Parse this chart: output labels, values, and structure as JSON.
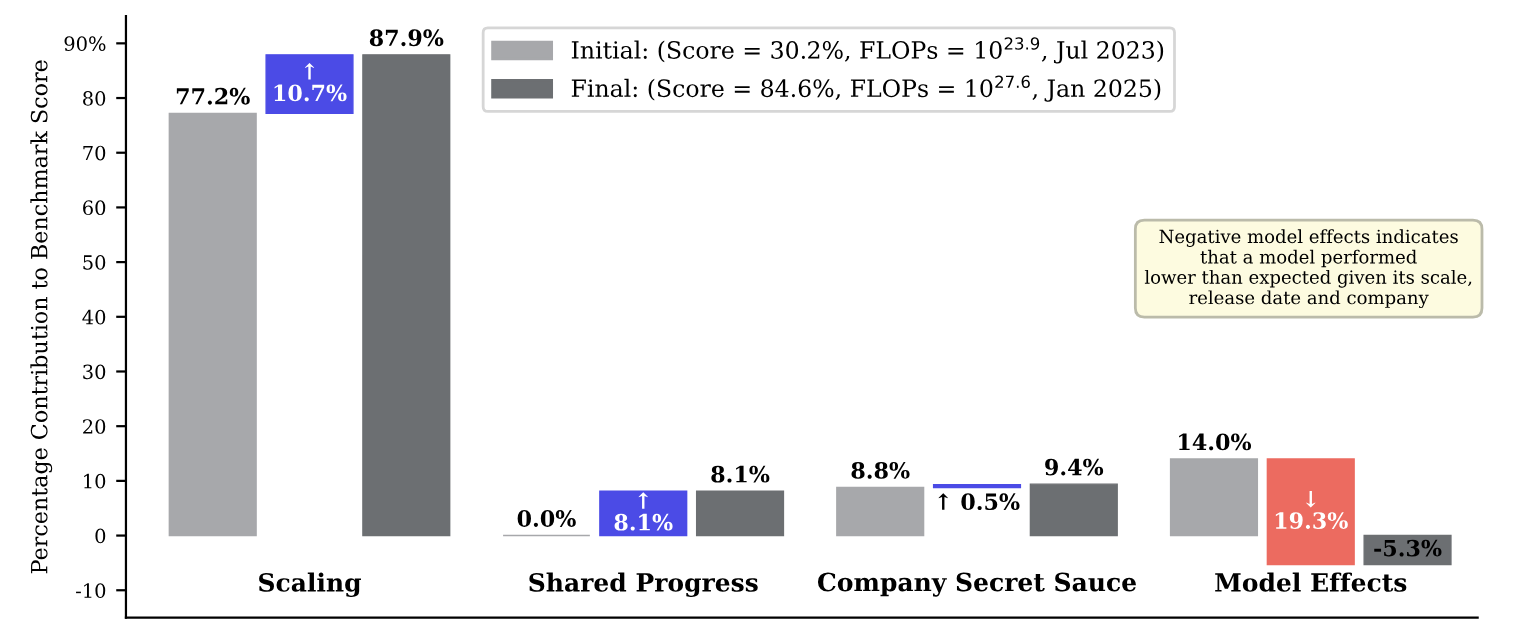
{
  "chart_data": {
    "type": "bar",
    "ylabel": "Percentage Contribution to Benchmark Score",
    "categories": [
      "Scaling",
      "Shared Progress",
      "Company Secret Sauce",
      "Model Effects"
    ],
    "series": [
      {
        "name": "Initial: (Score = 30.2%, FLOPs = 10$^{23.9}$, Jul 2023)",
        "color": "#a7a8ab",
        "values": [
          77.2,
          0.0,
          8.8,
          14.0
        ],
        "value_labels": [
          "77.2%",
          "0.0%",
          "8.8%",
          "14.0%"
        ]
      },
      {
        "colors": [
          "#4b4be6",
          "#4b4be6",
          "#4b4be6",
          "#ec6b60"
        ],
        "values": [
          10.7,
          8.1,
          0.5,
          -19.3
        ],
        "base": [
          77.2,
          0.0,
          8.8,
          14.0
        ],
        "value_labels": [
          "↑\n10.7%",
          "↑\n8.1%",
          "↑ 0.5%",
          "↓\n19.3%"
        ]
      },
      {
        "name": "Final: (Score = 84.6%, FLOPs = 10$^{27.6}$, Jan 2025)",
        "color": "#6c6f72",
        "values": [
          87.9,
          8.1,
          9.4,
          -5.3
        ],
        "value_labels": [
          "87.9%",
          "8.1%",
          "9.4%",
          "-5.3%"
        ]
      }
    ],
    "ylim": [
      -15,
      95
    ],
    "yticks": [
      -10,
      0,
      10,
      20,
      30,
      40,
      50,
      60,
      70,
      80,
      {
        "value": 90,
        "label": "90%"
      }
    ],
    "annotations": [
      "Negative model effects indicates\nthat a model performed\nlower than expected given its scale,\nrelease date and company"
    ],
    "legend": "top",
    "grid": false
  }
}
